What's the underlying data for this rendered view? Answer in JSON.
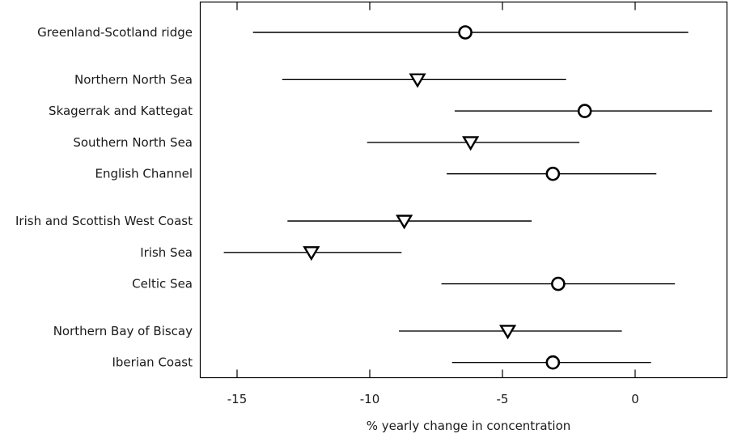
{
  "chart_data": {
    "type": "forest",
    "xlabel": "% yearly change in concentration",
    "ylabel": "",
    "title": "",
    "xlim": [
      -16.5,
      3.5
    ],
    "x_ticks": [
      -15,
      -10,
      -5,
      0
    ],
    "x_tick_labels": [
      "-15",
      "-10",
      "-5",
      "0"
    ],
    "grid": false,
    "legend": "none",
    "marker_shapes": [
      "circle",
      "triangle-down"
    ],
    "categories": [
      "Greenland-Scotland ridge",
      "Northern North Sea",
      "Skagerrak and Kattegat",
      "Southern North Sea",
      "English Channel",
      "Irish and Scottish West Coast",
      "Irish Sea",
      "Celtic Sea",
      "Northern Bay of Biscay",
      "Iberian Coast"
    ],
    "groups": [
      [
        "Greenland-Scotland ridge"
      ],
      [
        "Northern North Sea",
        "Skagerrak and Kattegat",
        "Southern North Sea",
        "English Channel"
      ],
      [
        "Irish and Scottish West Coast",
        "Irish Sea",
        "Celtic Sea"
      ],
      [
        "Northern Bay of Biscay",
        "Iberian Coast"
      ]
    ],
    "points": [
      {
        "category": "Greenland-Scotland ridge",
        "value": -6.4,
        "lower": -14.4,
        "upper": 2.0,
        "marker": "circle"
      },
      {
        "category": "Northern North Sea",
        "value": -8.2,
        "lower": -13.3,
        "upper": -2.6,
        "marker": "triangle-down"
      },
      {
        "category": "Skagerrak and Kattegat",
        "value": -1.9,
        "lower": -6.8,
        "upper": 2.9,
        "marker": "circle"
      },
      {
        "category": "Southern North Sea",
        "value": -6.2,
        "lower": -10.1,
        "upper": -2.1,
        "marker": "triangle-down"
      },
      {
        "category": "English Channel",
        "value": -3.1,
        "lower": -7.1,
        "upper": 0.8,
        "marker": "circle"
      },
      {
        "category": "Irish and Scottish West Coast",
        "value": -8.7,
        "lower": -13.1,
        "upper": -3.9,
        "marker": "triangle-down"
      },
      {
        "category": "Irish Sea",
        "value": -12.2,
        "lower": -15.5,
        "upper": -8.8,
        "marker": "triangle-down"
      },
      {
        "category": "Celtic Sea",
        "value": -2.9,
        "lower": -7.3,
        "upper": 1.5,
        "marker": "circle"
      },
      {
        "category": "Northern Bay of Biscay",
        "value": -4.8,
        "lower": -8.9,
        "upper": -0.5,
        "marker": "triangle-down"
      },
      {
        "category": "Iberian Coast",
        "value": -3.1,
        "lower": -6.9,
        "upper": 0.6,
        "marker": "circle"
      }
    ]
  }
}
